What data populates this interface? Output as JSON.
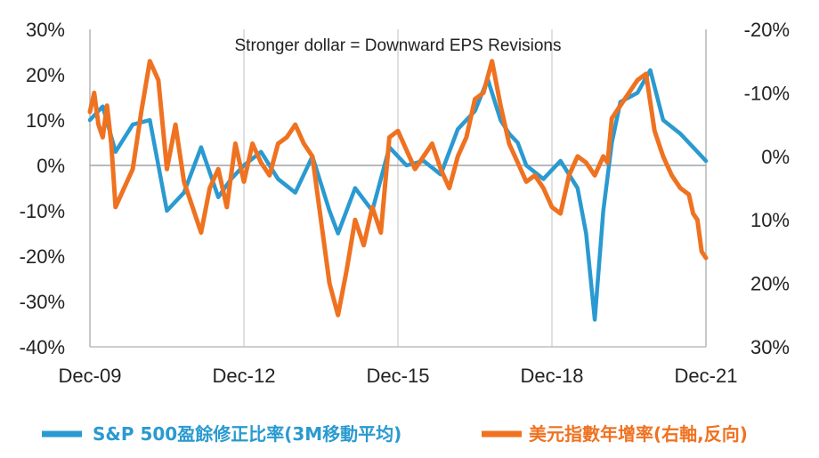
{
  "chart_data": {
    "type": "line",
    "title": "",
    "annotation": "Stronger dollar = Downward EPS Revisions",
    "x_ticks": [
      "Dec-09",
      "Dec-12",
      "Dec-15",
      "Dec-18",
      "Dec-21"
    ],
    "x_tick_index": [
      0,
      36,
      72,
      108,
      144
    ],
    "y_left": {
      "ticks": [
        "30%",
        "20%",
        "10%",
        "0%",
        "-10%",
        "-20%",
        "-30%",
        "-40%"
      ],
      "tick_values": [
        30,
        20,
        10,
        0,
        -10,
        -20,
        -30,
        -40
      ],
      "range": [
        -40,
        30
      ]
    },
    "y_right": {
      "ticks": [
        "-20%",
        "-10%",
        "0%",
        "10%",
        "20%",
        "30%"
      ],
      "tick_values": [
        -20,
        -10,
        0,
        10,
        20,
        30
      ],
      "range": [
        30,
        -20
      ],
      "inverted": true
    },
    "grid": "vertical",
    "legend_position": "bottom",
    "series": [
      {
        "name": "S&P 500盈餘修正比率(3M移動平均)",
        "axis": "left",
        "color": "#2a9ad0",
        "x": [
          0,
          3,
          6,
          10,
          14,
          18,
          22,
          26,
          30,
          33,
          36,
          40,
          44,
          48,
          52,
          56,
          58,
          62,
          66,
          70,
          74,
          78,
          82,
          86,
          90,
          93,
          96,
          98,
          100,
          102,
          106,
          110,
          114,
          116,
          118,
          120,
          122,
          124,
          126,
          128,
          131,
          134,
          138,
          141,
          144
        ],
        "values": [
          10,
          13,
          3,
          9,
          10,
          -10,
          -6,
          4,
          -7,
          -3,
          0,
          3,
          -3,
          -6,
          2,
          -10,
          -15,
          -5,
          -10,
          4,
          0,
          1,
          -2,
          8,
          12,
          19,
          10,
          7,
          5,
          0,
          -3,
          1,
          -5,
          -15,
          -34,
          -10,
          5,
          14,
          15,
          16,
          21,
          10,
          7,
          4,
          1
        ]
      },
      {
        "name": "美元指數年增率(右軸,反向)",
        "axis": "right",
        "color": "#ef7221",
        "x": [
          0,
          1,
          2,
          3,
          4,
          5,
          6,
          8,
          10,
          12,
          14,
          16,
          17,
          18,
          20,
          22,
          24,
          26,
          28,
          30,
          32,
          34,
          36,
          38,
          40,
          42,
          44,
          46,
          48,
          50,
          52,
          54,
          56,
          58,
          60,
          62,
          64,
          66,
          68,
          70,
          72,
          74,
          76,
          78,
          80,
          82,
          84,
          86,
          88,
          90,
          92,
          94,
          96,
          98,
          100,
          102,
          104,
          106,
          108,
          110,
          112,
          114,
          116,
          118,
          120,
          121,
          122,
          124,
          126,
          128,
          130,
          132,
          134,
          136,
          138,
          140,
          141,
          142,
          143,
          144
        ],
        "values": [
          -7,
          -10,
          -5,
          -3,
          -8,
          -2,
          8,
          5,
          2,
          -7,
          -15,
          -12,
          -5,
          2,
          -5,
          4,
          8,
          12,
          5,
          2,
          8,
          -2,
          4,
          -2,
          1,
          3,
          -2,
          -3,
          -5,
          -2,
          0,
          10,
          20,
          25,
          18,
          10,
          14,
          8,
          12,
          -3,
          -4,
          -1,
          2,
          0,
          -2,
          2,
          5,
          0,
          -3,
          -9,
          -10,
          -15,
          -8,
          -2,
          1,
          4,
          3,
          5,
          8,
          9,
          3,
          0,
          1,
          3,
          0,
          1,
          -6,
          -8,
          -10,
          -12,
          -13,
          -4,
          0,
          3,
          5,
          6,
          9,
          10,
          15,
          16
        ]
      }
    ]
  }
}
